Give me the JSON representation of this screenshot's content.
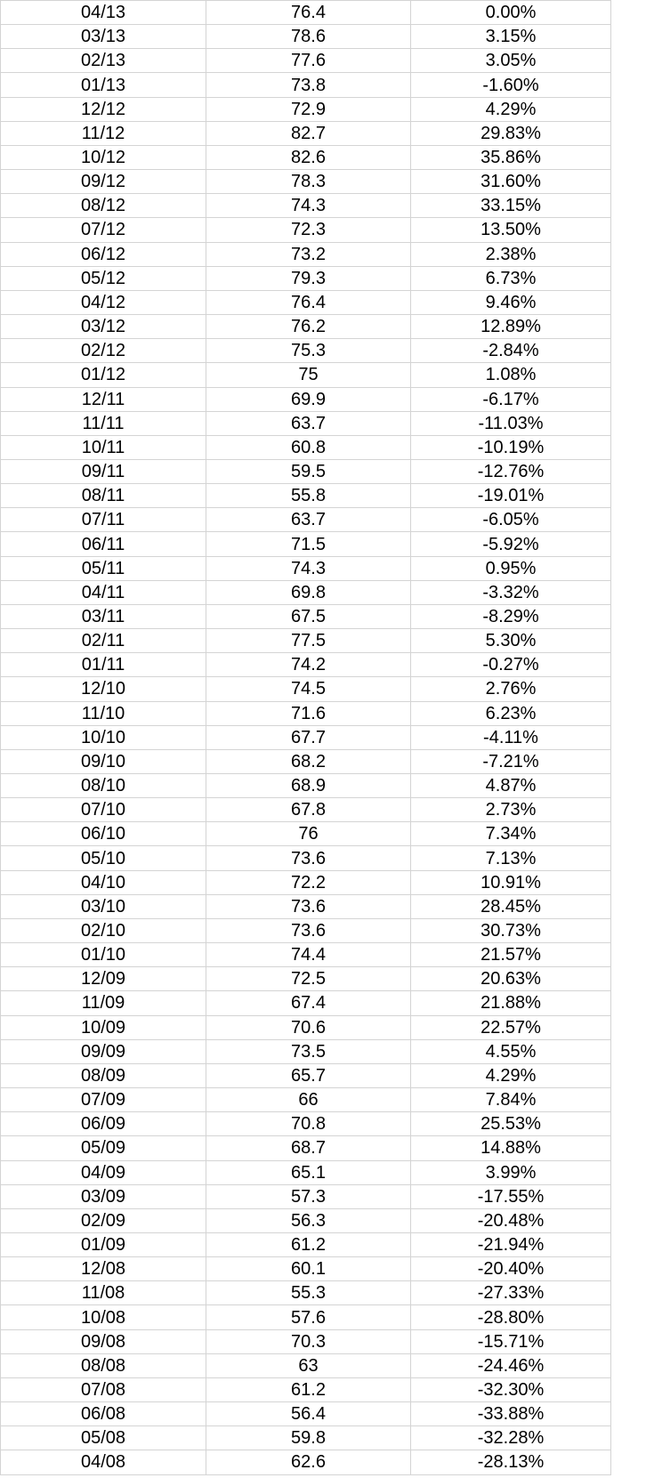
{
  "rows": [
    [
      "04/13",
      "76.4",
      "0.00%"
    ],
    [
      "03/13",
      "78.6",
      "3.15%"
    ],
    [
      "02/13",
      "77.6",
      "3.05%"
    ],
    [
      "01/13",
      "73.8",
      "-1.60%"
    ],
    [
      "12/12",
      "72.9",
      "4.29%"
    ],
    [
      "11/12",
      "82.7",
      "29.83%"
    ],
    [
      "10/12",
      "82.6",
      "35.86%"
    ],
    [
      "09/12",
      "78.3",
      "31.60%"
    ],
    [
      "08/12",
      "74.3",
      "33.15%"
    ],
    [
      "07/12",
      "72.3",
      "13.50%"
    ],
    [
      "06/12",
      "73.2",
      "2.38%"
    ],
    [
      "05/12",
      "79.3",
      "6.73%"
    ],
    [
      "04/12",
      "76.4",
      "9.46%"
    ],
    [
      "03/12",
      "76.2",
      "12.89%"
    ],
    [
      "02/12",
      "75.3",
      "-2.84%"
    ],
    [
      "01/12",
      "75",
      "1.08%"
    ],
    [
      "12/11",
      "69.9",
      "-6.17%"
    ],
    [
      "11/11",
      "63.7",
      "-11.03%"
    ],
    [
      "10/11",
      "60.8",
      "-10.19%"
    ],
    [
      "09/11",
      "59.5",
      "-12.76%"
    ],
    [
      "08/11",
      "55.8",
      "-19.01%"
    ],
    [
      "07/11",
      "63.7",
      "-6.05%"
    ],
    [
      "06/11",
      "71.5",
      "-5.92%"
    ],
    [
      "05/11",
      "74.3",
      "0.95%"
    ],
    [
      "04/11",
      "69.8",
      "-3.32%"
    ],
    [
      "03/11",
      "67.5",
      "-8.29%"
    ],
    [
      "02/11",
      "77.5",
      "5.30%"
    ],
    [
      "01/11",
      "74.2",
      "-0.27%"
    ],
    [
      "12/10",
      "74.5",
      "2.76%"
    ],
    [
      "11/10",
      "71.6",
      "6.23%"
    ],
    [
      "10/10",
      "67.7",
      "-4.11%"
    ],
    [
      "09/10",
      "68.2",
      "-7.21%"
    ],
    [
      "08/10",
      "68.9",
      "4.87%"
    ],
    [
      "07/10",
      "67.8",
      "2.73%"
    ],
    [
      "06/10",
      "76",
      "7.34%"
    ],
    [
      "05/10",
      "73.6",
      "7.13%"
    ],
    [
      "04/10",
      "72.2",
      "10.91%"
    ],
    [
      "03/10",
      "73.6",
      "28.45%"
    ],
    [
      "02/10",
      "73.6",
      "30.73%"
    ],
    [
      "01/10",
      "74.4",
      "21.57%"
    ],
    [
      "12/09",
      "72.5",
      "20.63%"
    ],
    [
      "11/09",
      "67.4",
      "21.88%"
    ],
    [
      "10/09",
      "70.6",
      "22.57%"
    ],
    [
      "09/09",
      "73.5",
      "4.55%"
    ],
    [
      "08/09",
      "65.7",
      "4.29%"
    ],
    [
      "07/09",
      "66",
      "7.84%"
    ],
    [
      "06/09",
      "70.8",
      "25.53%"
    ],
    [
      "05/09",
      "68.7",
      "14.88%"
    ],
    [
      "04/09",
      "65.1",
      "3.99%"
    ],
    [
      "03/09",
      "57.3",
      "-17.55%"
    ],
    [
      "02/09",
      "56.3",
      "-20.48%"
    ],
    [
      "01/09",
      "61.2",
      "-21.94%"
    ],
    [
      "12/08",
      "60.1",
      "-20.40%"
    ],
    [
      "11/08",
      "55.3",
      "-27.33%"
    ],
    [
      "10/08",
      "57.6",
      "-28.80%"
    ],
    [
      "09/08",
      "70.3",
      "-15.71%"
    ],
    [
      "08/08",
      "63",
      "-24.46%"
    ],
    [
      "07/08",
      "61.2",
      "-32.30%"
    ],
    [
      "06/08",
      "56.4",
      "-33.88%"
    ],
    [
      "05/08",
      "59.8",
      "-32.28%"
    ],
    [
      "04/08",
      "62.6",
      "-28.13%"
    ]
  ]
}
